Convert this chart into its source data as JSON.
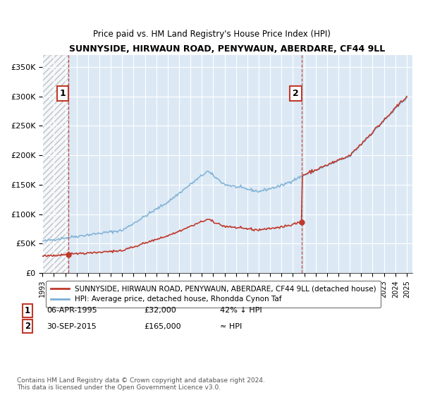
{
  "title": "SUNNYSIDE, HIRWAUN ROAD, PENYWAUN, ABERDARE, CF44 9LL",
  "subtitle": "Price paid vs. HM Land Registry's House Price Index (HPI)",
  "ylabel_ticks": [
    "£0",
    "£50K",
    "£100K",
    "£150K",
    "£200K",
    "£250K",
    "£300K",
    "£350K"
  ],
  "ytick_vals": [
    0,
    50000,
    100000,
    150000,
    200000,
    250000,
    300000,
    350000
  ],
  "ylim": [
    0,
    370000
  ],
  "xlim_start": 1993,
  "xlim_end": 2025.5,
  "hpi_color": "#7bafd4",
  "price_color": "#c0392b",
  "marker1_date": 1995.27,
  "marker1_price": 32000,
  "marker1_label": "1",
  "marker2_date": 2015.75,
  "marker2_price": 165000,
  "marker2_label": "2",
  "legend_line1": "SUNNYSIDE, HIRWAUN ROAD, PENYWAUN, ABERDARE, CF44 9LL (detached house)",
  "legend_line2": "HPI: Average price, detached house, Rhondda Cynon Taf",
  "footnote": "Contains HM Land Registry data © Crown copyright and database right 2024.\nThis data is licensed under the Open Government Licence v3.0.",
  "plot_bg_color": "#dce9f5",
  "fig_bg_color": "#ffffff",
  "grid_color": "#ffffff",
  "hatch_region_end": 1995.27
}
